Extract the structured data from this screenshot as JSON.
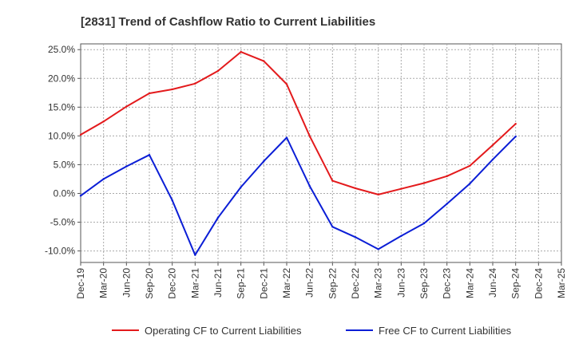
{
  "chart_data": {
    "type": "line",
    "title": "[2831]  Trend of Cashflow Ratio to Current Liabilities",
    "xlabel": "",
    "ylabel": "",
    "categories": [
      "Dec-19",
      "Mar-20",
      "Jun-20",
      "Sep-20",
      "Dec-20",
      "Mar-21",
      "Jun-21",
      "Sep-21",
      "Dec-21",
      "Mar-22",
      "Jun-22",
      "Sep-22",
      "Dec-22",
      "Mar-23",
      "Jun-23",
      "Sep-23",
      "Dec-23",
      "Mar-24",
      "Jun-24",
      "Sep-24",
      "Dec-24",
      "Mar-25"
    ],
    "y_ticks": [
      "25.0%",
      "20.0%",
      "15.0%",
      "10.0%",
      "5.0%",
      "0.0%",
      "-5.0%",
      "-10.0%"
    ],
    "ylim": [
      -12,
      26
    ],
    "grid": true,
    "legend_position": "bottom",
    "series": [
      {
        "name": "Operating CF to Current Liabilities",
        "color": "#e31a1c",
        "values": [
          10.2,
          12.5,
          15.1,
          17.4,
          18.1,
          19.1,
          21.3,
          24.6,
          23.0,
          19.0,
          10.0,
          2.2,
          0.9,
          -0.2,
          0.8,
          1.8,
          3.0,
          4.8,
          8.4,
          12.1,
          null,
          null
        ]
      },
      {
        "name": "Free CF to Current Liabilities",
        "color": "#0b1ed6",
        "values": [
          -0.4,
          2.5,
          4.7,
          6.7,
          -1.2,
          -10.7,
          -4.2,
          1.1,
          5.6,
          9.7,
          1.3,
          -5.8,
          -7.6,
          -9.7,
          -7.4,
          -5.2,
          -1.8,
          1.7,
          5.9,
          9.9,
          null,
          null
        ]
      }
    ]
  }
}
